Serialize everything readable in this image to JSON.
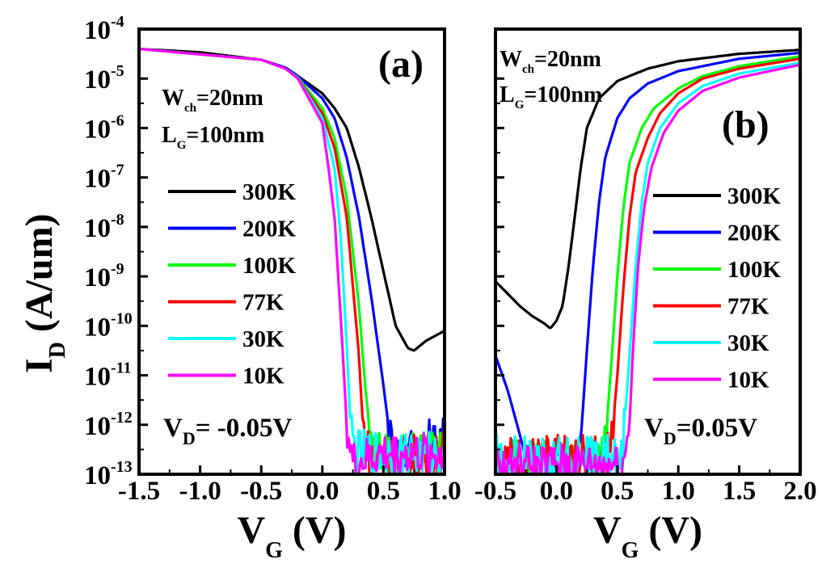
{
  "chart_data": [
    {
      "panel": "(a)",
      "type": "line",
      "xlabel": "V",
      "xlabel_sub": "G",
      "xlabel_unit": "(V)",
      "ylabel": "I",
      "ylabel_sub": "D",
      "ylabel_unit": "(A/um)",
      "xlim": [
        -1.5,
        1.0
      ],
      "ylim_log10": [
        -13,
        -4
      ],
      "y_scale": "log",
      "xticks": [
        "-1.5",
        "-1.0",
        "-0.5",
        "0.0",
        "0.5",
        "1.0"
      ],
      "xtick_values": [
        -1.5,
        -1.0,
        -0.5,
        0.0,
        0.5,
        1.0
      ],
      "ytick_base": "10",
      "ytick_exponents": [
        "-4",
        "-5",
        "-6",
        "-7",
        "-8",
        "-9",
        "-10",
        "-11",
        "-12",
        "-13"
      ],
      "ytick_values": [
        -4,
        -5,
        -6,
        -7,
        -8,
        -9,
        -10,
        -11,
        -12,
        -13
      ],
      "annotation_lines": [
        {
          "main": "W",
          "sub": "ch",
          "rest": "=20nm"
        },
        {
          "main": "L",
          "sub": "G",
          "rest": "=100nm"
        }
      ],
      "bias": {
        "main": "V",
        "sub": "D",
        "rest": "= -0.05V"
      },
      "legend_position": "center-left",
      "series": [
        {
          "name": "300K",
          "color": "#000000",
          "noise": 0.0,
          "points": [
            [
              -1.5,
              -4.4
            ],
            [
              -1.0,
              -4.47
            ],
            [
              -0.5,
              -4.62
            ],
            [
              -0.3,
              -4.78
            ],
            [
              -0.2,
              -4.95
            ],
            [
              0.0,
              -5.3
            ],
            [
              0.1,
              -5.6
            ],
            [
              0.2,
              -6.0
            ],
            [
              0.3,
              -6.8
            ],
            [
              0.4,
              -7.8
            ],
            [
              0.5,
              -8.9
            ],
            [
              0.6,
              -10.0
            ],
            [
              0.7,
              -10.45
            ],
            [
              0.75,
              -10.5
            ],
            [
              0.85,
              -10.3
            ],
            [
              1.0,
              -10.1
            ]
          ]
        },
        {
          "name": "200K",
          "color": "#0000ff",
          "noise": 0.5,
          "points": [
            [
              -1.5,
              -4.4
            ],
            [
              -0.5,
              -4.62
            ],
            [
              -0.3,
              -4.78
            ],
            [
              -0.2,
              -4.95
            ],
            [
              0.0,
              -5.4
            ],
            [
              0.1,
              -5.8
            ],
            [
              0.2,
              -6.6
            ],
            [
              0.3,
              -7.8
            ],
            [
              0.4,
              -9.4
            ],
            [
              0.5,
              -11.2
            ],
            [
              0.55,
              -12.2
            ],
            [
              0.6,
              -12.6
            ],
            [
              0.7,
              -12.5
            ],
            [
              0.8,
              -12.4
            ],
            [
              1.0,
              -12.3
            ]
          ]
        },
        {
          "name": "100K",
          "color": "#00ff00",
          "noise": 0.4,
          "points": [
            [
              -1.5,
              -4.4
            ],
            [
              -0.5,
              -4.62
            ],
            [
              -0.3,
              -4.8
            ],
            [
              -0.2,
              -4.98
            ],
            [
              0.0,
              -5.6
            ],
            [
              0.1,
              -6.2
            ],
            [
              0.2,
              -7.4
            ],
            [
              0.3,
              -9.6
            ],
            [
              0.35,
              -11.2
            ],
            [
              0.4,
              -12.4
            ],
            [
              0.5,
              -12.6
            ],
            [
              0.7,
              -12.5
            ],
            [
              1.0,
              -12.5
            ]
          ]
        },
        {
          "name": "77K",
          "color": "#ff0000",
          "noise": 0.5,
          "points": [
            [
              -1.5,
              -4.4
            ],
            [
              -0.5,
              -4.62
            ],
            [
              -0.3,
              -4.8
            ],
            [
              -0.2,
              -5.0
            ],
            [
              0.0,
              -5.7
            ],
            [
              0.1,
              -6.4
            ],
            [
              0.2,
              -7.8
            ],
            [
              0.3,
              -10.6
            ],
            [
              0.33,
              -12.0
            ],
            [
              0.38,
              -12.6
            ],
            [
              0.5,
              -12.7
            ],
            [
              0.7,
              -12.7
            ],
            [
              1.0,
              -12.6
            ]
          ]
        },
        {
          "name": "30K",
          "color": "#00ffff",
          "noise": 0.5,
          "points": [
            [
              -1.5,
              -4.4
            ],
            [
              -0.5,
              -4.62
            ],
            [
              -0.3,
              -4.8
            ],
            [
              -0.2,
              -5.0
            ],
            [
              0.0,
              -5.8
            ],
            [
              0.1,
              -6.8
            ],
            [
              0.15,
              -8.2
            ],
            [
              0.2,
              -10.4
            ],
            [
              0.23,
              -12.0
            ],
            [
              0.27,
              -12.6
            ],
            [
              0.5,
              -12.6
            ],
            [
              1.0,
              -12.6
            ]
          ]
        },
        {
          "name": "10K",
          "color": "#ff00ff",
          "noise": 0.45,
          "points": [
            [
              -1.5,
              -4.4
            ],
            [
              -0.5,
              -4.62
            ],
            [
              -0.3,
              -4.8
            ],
            [
              -0.2,
              -5.0
            ],
            [
              0.0,
              -5.9
            ],
            [
              0.05,
              -6.8
            ],
            [
              0.1,
              -7.8
            ],
            [
              0.15,
              -9.8
            ],
            [
              0.2,
              -12.0
            ],
            [
              0.25,
              -12.8
            ],
            [
              0.5,
              -12.6
            ],
            [
              1.0,
              -12.6
            ]
          ]
        }
      ]
    },
    {
      "panel": "(b)",
      "type": "line",
      "xlabel": "V",
      "xlabel_sub": "G",
      "xlabel_unit": "(V)",
      "xlim": [
        -0.5,
        2.0
      ],
      "ylim_log10": [
        -13,
        -4
      ],
      "y_scale": "log",
      "xticks": [
        "-0.5",
        "0.0",
        "0.5",
        "1.0",
        "1.5",
        "2.0"
      ],
      "xtick_values": [
        -0.5,
        0.0,
        0.5,
        1.0,
        1.5,
        2.0
      ],
      "ytick_values": [
        -4,
        -5,
        -6,
        -7,
        -8,
        -9,
        -10,
        -11,
        -12,
        -13
      ],
      "annotation_lines": [
        {
          "main": "W",
          "sub": "ch",
          "rest": "=20nm"
        },
        {
          "main": "L",
          "sub": "G",
          "rest": "=100nm"
        }
      ],
      "bias": {
        "main": "V",
        "sub": "D",
        "rest": "=0.05V"
      },
      "legend_position": "center-right",
      "series": [
        {
          "name": "300K",
          "color": "#000000",
          "noise": 0.0,
          "points": [
            [
              -0.5,
              -9.1
            ],
            [
              -0.4,
              -9.35
            ],
            [
              -0.3,
              -9.6
            ],
            [
              -0.2,
              -9.8
            ],
            [
              -0.1,
              -9.95
            ],
            [
              -0.05,
              -10.05
            ],
            [
              0.0,
              -9.9
            ],
            [
              0.05,
              -9.6
            ],
            [
              0.1,
              -8.8
            ],
            [
              0.15,
              -7.8
            ],
            [
              0.2,
              -6.8
            ],
            [
              0.25,
              -6.0
            ],
            [
              0.35,
              -5.4
            ],
            [
              0.5,
              -5.05
            ],
            [
              0.75,
              -4.8
            ],
            [
              1.0,
              -4.65
            ],
            [
              1.5,
              -4.5
            ],
            [
              2.0,
              -4.42
            ]
          ]
        },
        {
          "name": "200K",
          "color": "#0000ff",
          "noise": 0.0,
          "points": [
            [
              -0.5,
              -10.6
            ],
            [
              -0.4,
              -11.3
            ],
            [
              -0.3,
              -12.2
            ],
            [
              -0.25,
              -12.7
            ],
            [
              -0.2,
              -12.6
            ],
            [
              0.0,
              -12.6
            ],
            [
              0.15,
              -12.6
            ],
            [
              0.2,
              -12.3
            ],
            [
              0.25,
              -10.5
            ],
            [
              0.3,
              -8.8
            ],
            [
              0.35,
              -7.5
            ],
            [
              0.4,
              -6.6
            ],
            [
              0.5,
              -5.8
            ],
            [
              0.6,
              -5.4
            ],
            [
              0.75,
              -5.1
            ],
            [
              1.0,
              -4.85
            ],
            [
              1.5,
              -4.6
            ],
            [
              2.0,
              -4.48
            ]
          ]
        },
        {
          "name": "100K",
          "color": "#00ff00",
          "noise": 0.45,
          "points": [
            [
              -0.5,
              -12.7
            ],
            [
              0.0,
              -12.7
            ],
            [
              0.35,
              -12.7
            ],
            [
              0.4,
              -12.4
            ],
            [
              0.45,
              -10.8
            ],
            [
              0.5,
              -9.0
            ],
            [
              0.55,
              -7.6
            ],
            [
              0.6,
              -6.7
            ],
            [
              0.7,
              -6.0
            ],
            [
              0.8,
              -5.6
            ],
            [
              1.0,
              -5.2
            ],
            [
              1.2,
              -4.95
            ],
            [
              1.5,
              -4.75
            ],
            [
              2.0,
              -4.55
            ]
          ]
        },
        {
          "name": "77K",
          "color": "#ff0000",
          "noise": 0.5,
          "points": [
            [
              -0.5,
              -12.7
            ],
            [
              0.0,
              -12.7
            ],
            [
              0.4,
              -12.7
            ],
            [
              0.45,
              -12.4
            ],
            [
              0.5,
              -11.0
            ],
            [
              0.55,
              -9.2
            ],
            [
              0.6,
              -7.8
            ],
            [
              0.65,
              -6.9
            ],
            [
              0.75,
              -6.2
            ],
            [
              0.85,
              -5.7
            ],
            [
              1.0,
              -5.3
            ],
            [
              1.2,
              -5.0
            ],
            [
              1.5,
              -4.8
            ],
            [
              2.0,
              -4.6
            ]
          ]
        },
        {
          "name": "30K",
          "color": "#00ffff",
          "noise": 0.5,
          "points": [
            [
              -0.5,
              -12.7
            ],
            [
              0.0,
              -12.7
            ],
            [
              0.5,
              -12.7
            ],
            [
              0.55,
              -12.3
            ],
            [
              0.6,
              -10.6
            ],
            [
              0.65,
              -8.8
            ],
            [
              0.7,
              -7.5
            ],
            [
              0.75,
              -6.7
            ],
            [
              0.85,
              -6.0
            ],
            [
              1.0,
              -5.5
            ],
            [
              1.2,
              -5.15
            ],
            [
              1.5,
              -4.9
            ],
            [
              2.0,
              -4.68
            ]
          ]
        },
        {
          "name": "10K",
          "color": "#ff00ff",
          "noise": 0.4,
          "points": [
            [
              -0.5,
              -12.8
            ],
            [
              0.0,
              -12.8
            ],
            [
              0.55,
              -12.8
            ],
            [
              0.6,
              -12.0
            ],
            [
              0.63,
              -10.4
            ],
            [
              0.67,
              -8.8
            ],
            [
              0.72,
              -7.6
            ],
            [
              0.78,
              -6.8
            ],
            [
              0.88,
              -6.1
            ],
            [
              1.0,
              -5.65
            ],
            [
              1.2,
              -5.25
            ],
            [
              1.5,
              -4.98
            ],
            [
              2.0,
              -4.72
            ]
          ]
        }
      ]
    }
  ]
}
